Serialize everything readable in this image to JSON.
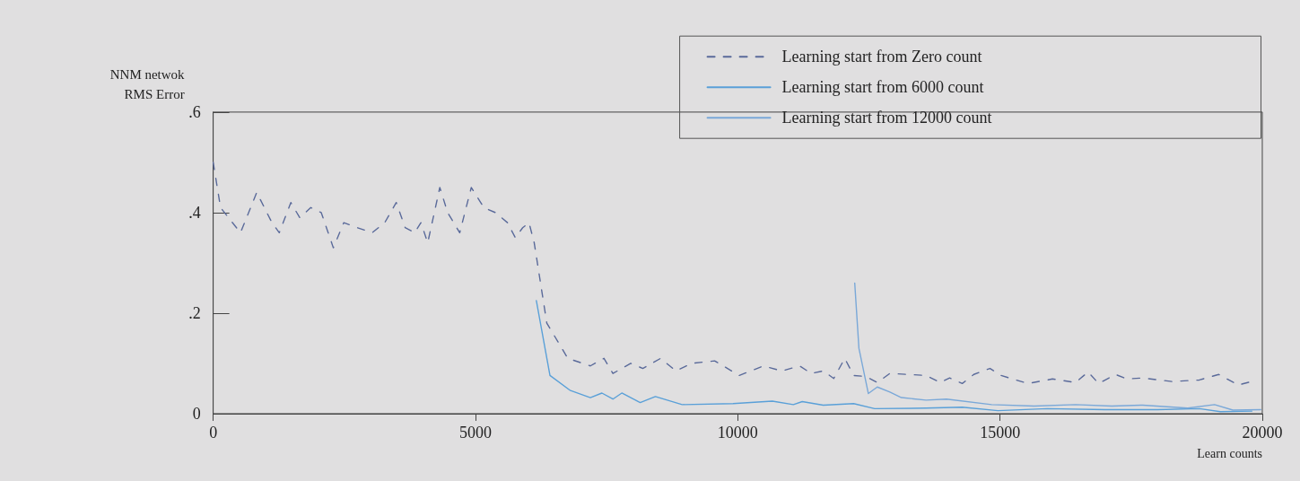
{
  "chart_data": {
    "type": "line",
    "xlabel": "Learn counts",
    "ylabel": "NNM netwok\nRMS Error",
    "xlim": [
      0,
      20000
    ],
    "xticks": [
      0,
      5000,
      10000,
      15000,
      20000
    ],
    "ylim": [
      0,
      0.6
    ],
    "yticks": [
      {
        "value": 0,
        "label": "0"
      },
      {
        "value": 0.2,
        "label": ".2"
      },
      {
        "value": 0.4,
        "label": ".4"
      },
      {
        "value": 0.6,
        "label": ".6"
      }
    ],
    "grid": false,
    "legend": "top right",
    "marker": "none",
    "series": [
      {
        "name": "Learning start from Zero count",
        "color": "#5a6a9a",
        "line_style": "dashed",
        "x": [
          0,
          140,
          520,
          830,
          1120,
          1260,
          1480,
          1650,
          1860,
          2060,
          2290,
          2490,
          2750,
          3030,
          3270,
          3490,
          3660,
          3840,
          3960,
          4090,
          4320,
          4470,
          4700,
          4920,
          5160,
          5380,
          5610,
          5760,
          5900,
          6020,
          6120,
          6240,
          6360,
          6590,
          6760,
          7190,
          7450,
          7620,
          7960,
          8190,
          8530,
          8820,
          9120,
          9560,
          10030,
          10490,
          10840,
          11180,
          11400,
          11630,
          11830,
          12040,
          12210,
          12440,
          12660,
          12900,
          13590,
          13860,
          14040,
          14280,
          14500,
          14810,
          15020,
          15530,
          16000,
          16440,
          16680,
          16880,
          17200,
          17420,
          17720,
          18280,
          18800,
          19170,
          19540,
          19800
        ],
        "values": [
          0.5,
          0.41,
          0.36,
          0.44,
          0.38,
          0.36,
          0.42,
          0.39,
          0.41,
          0.4,
          0.33,
          0.38,
          0.37,
          0.36,
          0.38,
          0.42,
          0.37,
          0.36,
          0.38,
          0.34,
          0.45,
          0.4,
          0.36,
          0.45,
          0.41,
          0.4,
          0.38,
          0.35,
          0.37,
          0.38,
          0.34,
          0.26,
          0.18,
          0.14,
          0.11,
          0.095,
          0.11,
          0.08,
          0.1,
          0.09,
          0.11,
          0.085,
          0.1,
          0.105,
          0.076,
          0.095,
          0.085,
          0.095,
          0.08,
          0.085,
          0.07,
          0.11,
          0.076,
          0.074,
          0.062,
          0.08,
          0.076,
          0.062,
          0.071,
          0.06,
          0.078,
          0.09,
          0.076,
          0.06,
          0.069,
          0.062,
          0.083,
          0.06,
          0.078,
          0.069,
          0.071,
          0.064,
          0.067,
          0.078,
          0.057,
          0.064
        ]
      },
      {
        "name": "Learning start from 6000 count",
        "color": "#5aa0d8",
        "line_style": "solid",
        "x": [
          6160,
          6420,
          6810,
          7190,
          7410,
          7620,
          7790,
          8140,
          8430,
          8940,
          9910,
          10660,
          11060,
          11230,
          11630,
          12210,
          12610,
          13590,
          14280,
          14960,
          15900,
          17000,
          18000,
          18800,
          19200,
          19800
        ],
        "values": [
          0.225,
          0.076,
          0.046,
          0.032,
          0.041,
          0.029,
          0.041,
          0.022,
          0.034,
          0.018,
          0.02,
          0.025,
          0.018,
          0.024,
          0.017,
          0.02,
          0.01,
          0.011,
          0.013,
          0.006,
          0.01,
          0.008,
          0.008,
          0.01,
          0.004,
          0.005
        ]
      },
      {
        "name": "Learning start from 12000 count",
        "color": "#7aa8d8",
        "line_style": "solid",
        "x": [
          12230,
          12310,
          12490,
          12660,
          12900,
          13120,
          13590,
          13980,
          14840,
          15650,
          16440,
          17130,
          17720,
          18580,
          19090,
          19440,
          19970
        ],
        "values": [
          0.26,
          0.13,
          0.04,
          0.053,
          0.043,
          0.032,
          0.027,
          0.029,
          0.018,
          0.015,
          0.018,
          0.015,
          0.017,
          0.011,
          0.018,
          0.007,
          0.008
        ]
      }
    ]
  }
}
